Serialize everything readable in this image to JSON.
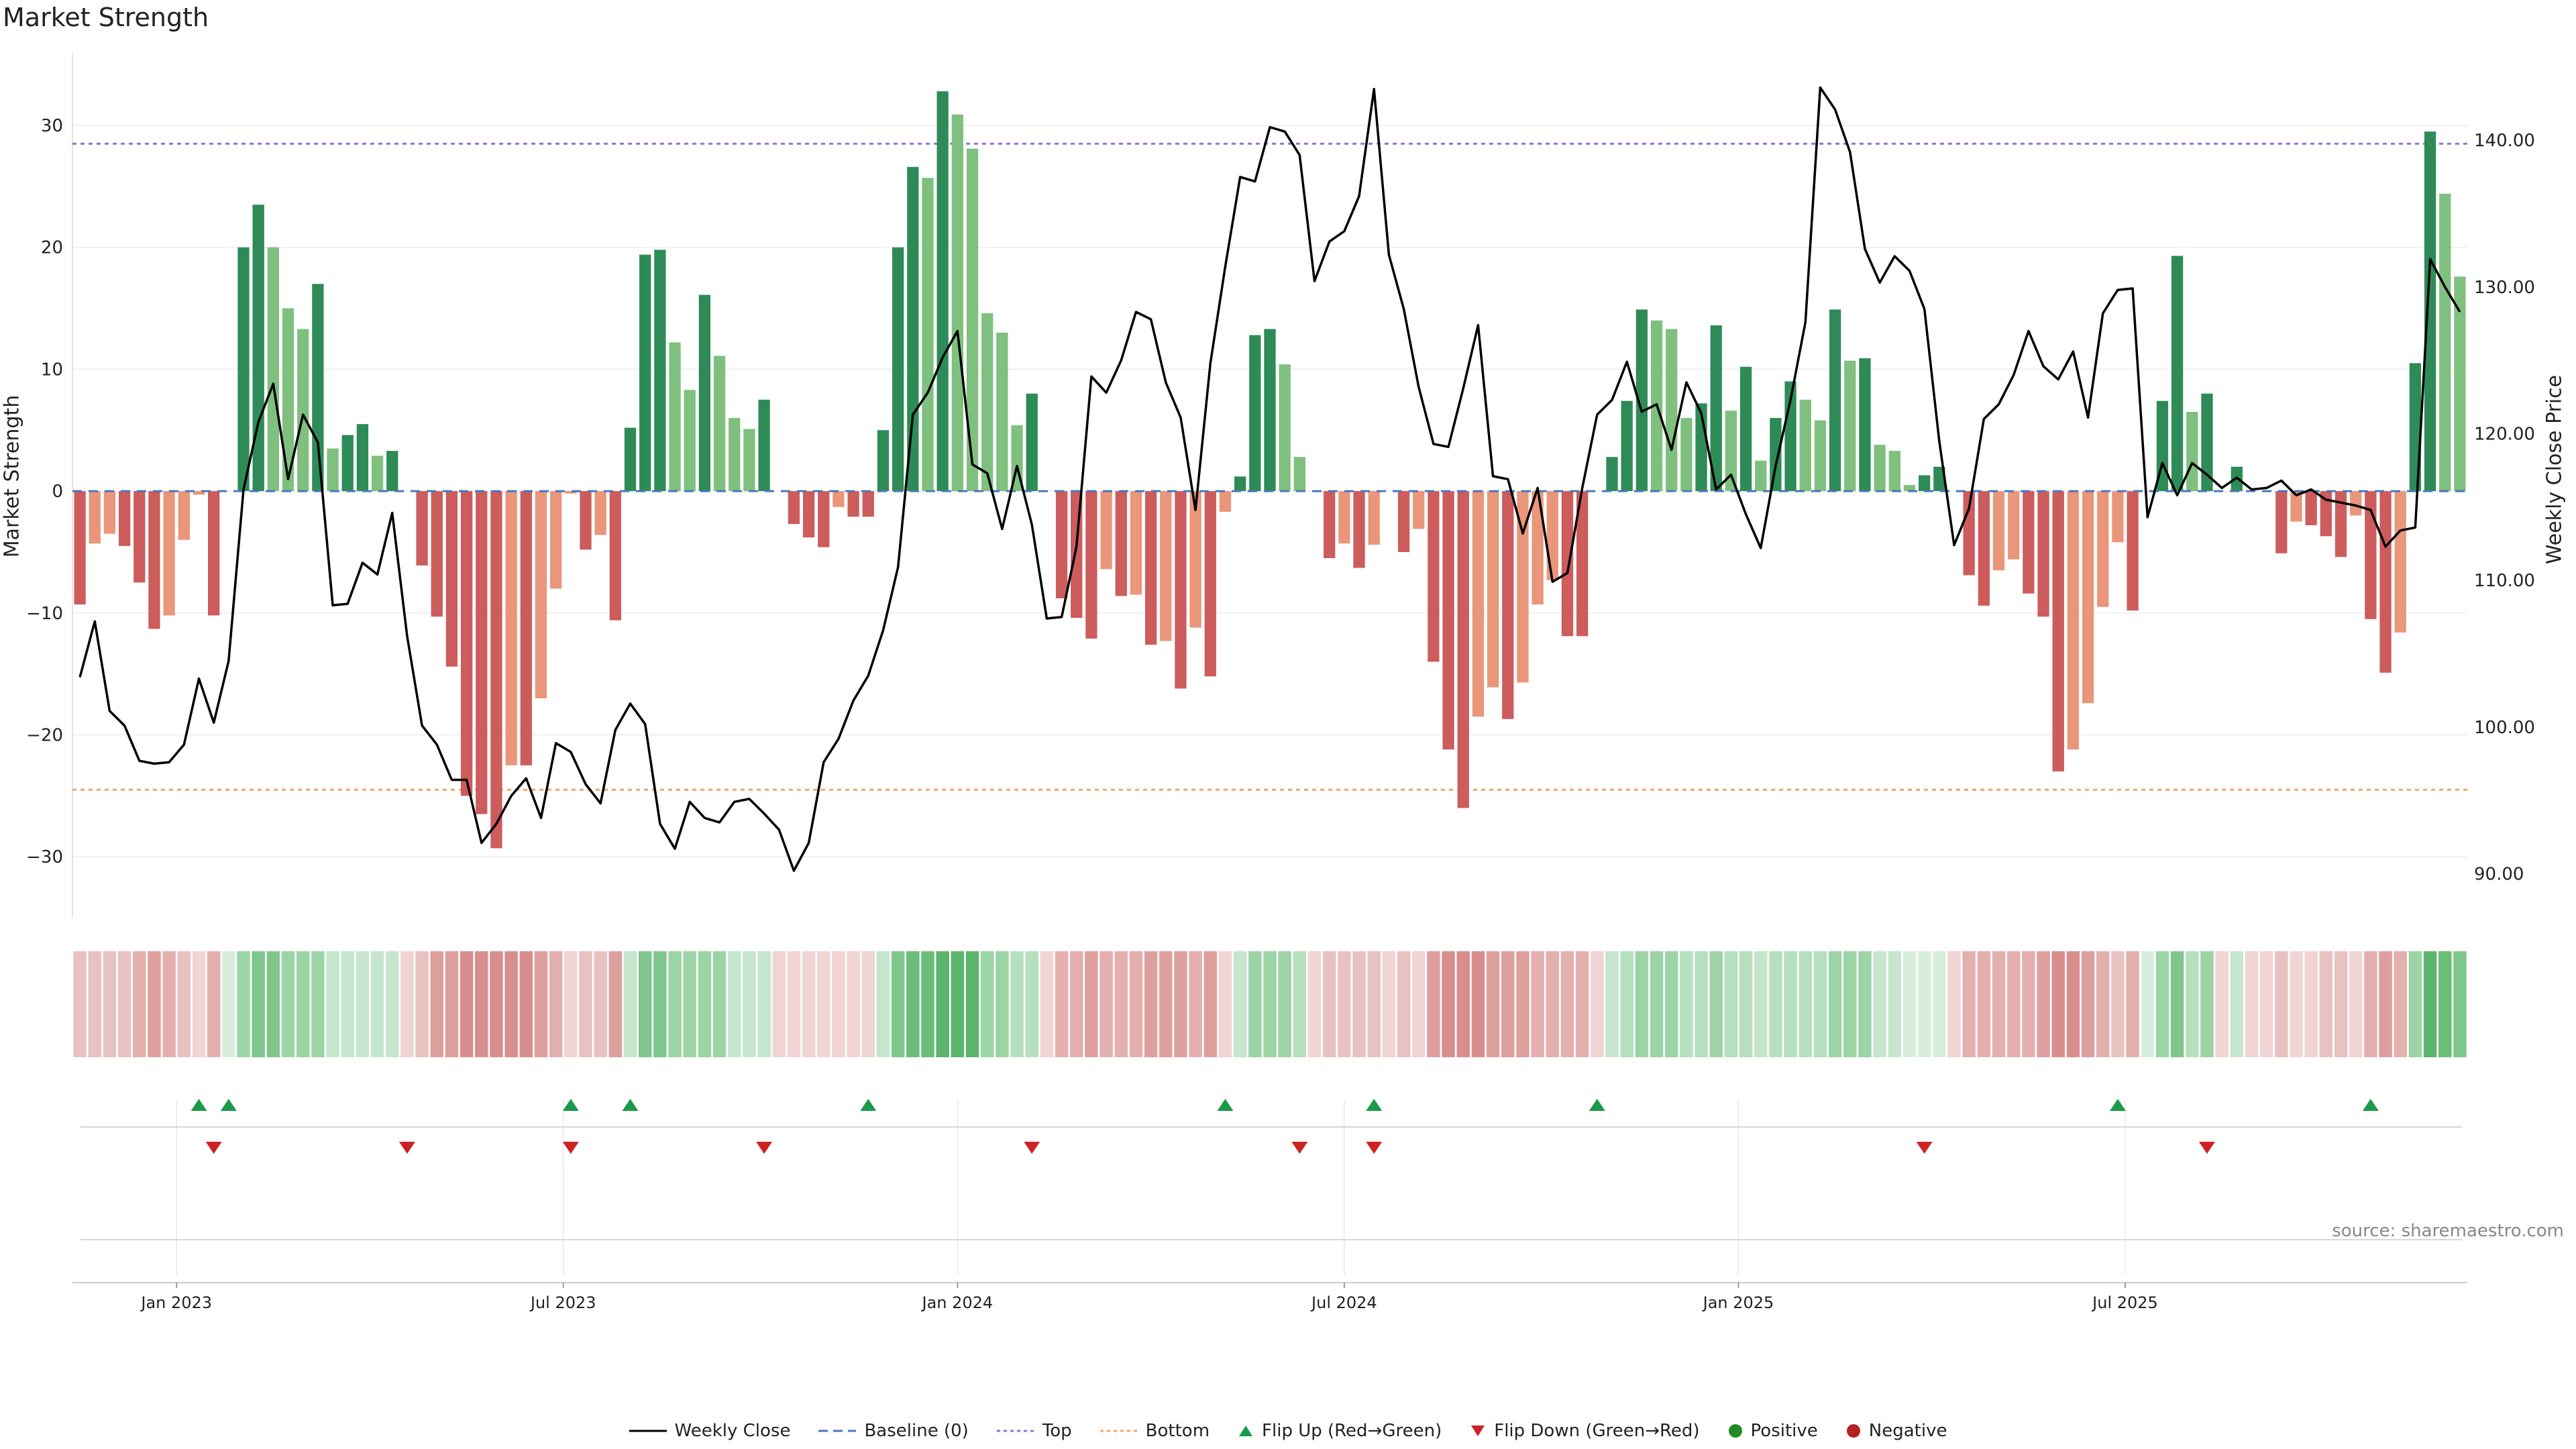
{
  "chart_data": {
    "type": "bar",
    "title": "Market Strength",
    "ylabel": "Market Strength",
    "y2label": "Weekly Close Price",
    "ylim": [
      -35,
      36
    ],
    "y2lim": [
      87,
      146
    ],
    "yticks": [
      30,
      20,
      10,
      0,
      -10,
      -20,
      -30
    ],
    "ytick_labels": [
      "30",
      "20",
      "10",
      "0",
      "−10",
      "−20",
      "−30"
    ],
    "y2ticks": [
      140,
      130,
      120,
      110,
      100,
      90
    ],
    "y2tick_labels": [
      "140.00",
      "130.00",
      "120.00",
      "110.00",
      "100.00",
      "90.00"
    ],
    "top_line": 28.5,
    "bottom_line": -24.5,
    "x_ticks": [
      {
        "week": 7,
        "label": "Jan 2023"
      },
      {
        "week": 33,
        "label": "Jul 2023"
      },
      {
        "week": 59.5,
        "label": "Jan 2024"
      },
      {
        "week": 85.5,
        "label": "Jul 2024"
      },
      {
        "week": 112,
        "label": "Jan 2025"
      },
      {
        "week": 138,
        "label": "Jul 2025"
      }
    ],
    "strength": [
      -9.3,
      -4.3,
      -3.5,
      -4.5,
      -7.5,
      -11.3,
      -10.2,
      -4,
      -0.3,
      -10.2,
      0,
      20,
      23.5,
      20,
      15,
      13.3,
      17,
      3.5,
      4.6,
      5.5,
      2.9,
      3.3,
      0,
      -6.1,
      -10.3,
      -14.4,
      -25,
      -26.5,
      -29.3,
      -22.5,
      -22.5,
      -17,
      -8,
      -0.2,
      -4.8,
      -3.6,
      -10.6,
      5.2,
      19.4,
      19.8,
      12.2,
      8.3,
      16.1,
      11.1,
      6,
      5.1,
      7.5,
      0,
      -2.7,
      -3.8,
      -4.6,
      -1.3,
      -2.1,
      -2.1,
      5,
      20,
      26.6,
      25.7,
      32.8,
      30.9,
      28.1,
      14.6,
      13,
      5.4,
      8,
      0,
      -8.8,
      -10.4,
      -12.1,
      -6.4,
      -8.6,
      -8.5,
      -12.6,
      -12.3,
      -16.2,
      -11.2,
      -15.2,
      -1.7,
      1.2,
      12.8,
      13.3,
      10.4,
      2.8,
      0,
      -5.5,
      -4.3,
      -6.3,
      -4.4,
      0,
      -5,
      -3.1,
      -14,
      -21.2,
      -26,
      -18.5,
      -16.1,
      -18.7,
      -15.7,
      -9.3,
      -7.3,
      -11.9,
      -11.9,
      0,
      2.8,
      7.4,
      14.9,
      14,
      13.3,
      6,
      7.2,
      13.6,
      6.6,
      10.2,
      2.5,
      6,
      9,
      7.5,
      5.8,
      14.9,
      10.7,
      10.9,
      3.8,
      3.3,
      0.5,
      1.3,
      2,
      0,
      -6.9,
      -9.4,
      -6.5,
      -5.6,
      -8.4,
      -10.3,
      -23,
      -21.2,
      -17.4,
      -9.5,
      -4.2,
      -9.8,
      0,
      7.4,
      19.3,
      6.5,
      8,
      0,
      2,
      0,
      0,
      -5.1,
      -2.5,
      -2.8,
      -3.7,
      -5.4,
      -2,
      -10.5,
      -14.9,
      -11.6,
      10.5,
      29.5,
      24.4,
      17.6
    ],
    "close": [
      103.4,
      107.2,
      101.1,
      100.1,
      97.7,
      97.5,
      97.6,
      98.8,
      103.3,
      100.3,
      104.5,
      116.2,
      120.8,
      123.4,
      116.9,
      121.3,
      119.4,
      108.3,
      108.4,
      111.2,
      110.4,
      114.6,
      106.2,
      100.1,
      98.8,
      96.4,
      96.4,
      92.1,
      93.4,
      95.3,
      96.5,
      93.8,
      98.9,
      98.3,
      96.1,
      94.8,
      99.8,
      101.6,
      100.2,
      93.4,
      91.7,
      94.9,
      93.8,
      93.5,
      94.9,
      95.1,
      94.1,
      93,
      90.2,
      92.1,
      97.6,
      99.2,
      101.8,
      103.5,
      106.6,
      110.9,
      121.3,
      122.8,
      125.2,
      127,
      117.9,
      117.3,
      113.5,
      117.8,
      113.8,
      107.4,
      107.5,
      112.3,
      123.9,
      122.8,
      125,
      128.3,
      127.8,
      123.5,
      121.1,
      114.8,
      124.8,
      131.4,
      137.5,
      137.2,
      140.9,
      140.6,
      139,
      130.4,
      133.1,
      133.8,
      136.2,
      143.5,
      132.2,
      128.5,
      123.2,
      119.3,
      119.1,
      123.1,
      127.4,
      117.1,
      116.9,
      113.2,
      116.3,
      109.9,
      110.5,
      116.3,
      121.3,
      122.3,
      124.9,
      121.5,
      122,
      118.9,
      123.5,
      121.4,
      116.2,
      117.2,
      114.5,
      112.2,
      117.8,
      122.3,
      127.6,
      143.6,
      142.1,
      139.2,
      132.6,
      130.3,
      132.1,
      131.1,
      128.5,
      119.5,
      112.4,
      114.9,
      121,
      122,
      124,
      127,
      124.6,
      123.7,
      125.6,
      121.1,
      128.2,
      129.8,
      129.9,
      114.3,
      118,
      115.8,
      118,
      117.2,
      116.3,
      117,
      116.2,
      116.3,
      116.8,
      115.8,
      116.2,
      115.5,
      115.3,
      115.1,
      114.8,
      112.3,
      113.4,
      113.6,
      131.9,
      130,
      128.3
    ],
    "bg_colors": [
      "#e8c2c0",
      "#e8c2c0",
      "#e8c2c0",
      "#e8c2c0",
      "#e3b0ae",
      "#dea09e",
      "#e3b0ae",
      "#e8c2c0",
      "#f0d5d4",
      "#e3b0ae",
      "#d8eedc",
      "#9cd4a6",
      "#7fc68d",
      "#7fc68d",
      "#9cd4a6",
      "#9cd4a6",
      "#9cd4a6",
      "#c5e6cc",
      "#c5e6cc",
      "#c5e6cc",
      "#c5e6cc",
      "#c5e6cc",
      "#f0d5d4",
      "#e8c2c0",
      "#dea09e",
      "#dea09e",
      "#d88e8c",
      "#d88e8c",
      "#d88e8c",
      "#d88e8c",
      "#d88e8c",
      "#dea09e",
      "#e3b0ae",
      "#f0d5d4",
      "#e8c2c0",
      "#e8c2c0",
      "#dea09e",
      "#c5e6cc",
      "#7fc68d",
      "#7fc68d",
      "#9cd4a6",
      "#9cd4a6",
      "#9cd4a6",
      "#9cd4a6",
      "#c5e6cc",
      "#c5e6cc",
      "#c5e6cc",
      "#f0d5d4",
      "#f0d5d4",
      "#f0d5d4",
      "#f0d5d4",
      "#f0d5d4",
      "#f0d5d4",
      "#f0d5d4",
      "#c5e6cc",
      "#7fc68d",
      "#6bbd7a",
      "#6bbd7a",
      "#5db46c",
      "#5db46c",
      "#5db46c",
      "#9cd4a6",
      "#9cd4a6",
      "#b5dfbd",
      "#b5dfbd",
      "#f0d5d4",
      "#e3b0ae",
      "#e3b0ae",
      "#dea09e",
      "#e3b0ae",
      "#e3b0ae",
      "#e3b0ae",
      "#dea09e",
      "#dea09e",
      "#dea09e",
      "#e3b0ae",
      "#dea09e",
      "#f0d5d4",
      "#c5e6cc",
      "#9cd4a6",
      "#9cd4a6",
      "#9cd4a6",
      "#b5dfbd",
      "#f0d5d4",
      "#e8c2c0",
      "#e8c2c0",
      "#e8c2c0",
      "#e8c2c0",
      "#f0d5d4",
      "#e8c2c0",
      "#f0d5d4",
      "#dea09e",
      "#d88e8c",
      "#d88e8c",
      "#d88e8c",
      "#dea09e",
      "#dea09e",
      "#dea09e",
      "#e3b0ae",
      "#e3b0ae",
      "#e3b0ae",
      "#e3b0ae",
      "#f0d5d4",
      "#c5e6cc",
      "#b5dfbd",
      "#9cd4a6",
      "#9cd4a6",
      "#9cd4a6",
      "#b5dfbd",
      "#b5dfbd",
      "#9cd4a6",
      "#b5dfbd",
      "#b5dfbd",
      "#c5e6cc",
      "#b5dfbd",
      "#b5dfbd",
      "#b5dfbd",
      "#b5dfbd",
      "#9cd4a6",
      "#9cd4a6",
      "#9cd4a6",
      "#c5e6cc",
      "#c5e6cc",
      "#d8eedc",
      "#d8eedc",
      "#d8eedc",
      "#f0d5d4",
      "#e3b0ae",
      "#e3b0ae",
      "#e3b0ae",
      "#e3b0ae",
      "#e3b0ae",
      "#dea09e",
      "#d88e8c",
      "#d88e8c",
      "#dea09e",
      "#e3b0ae",
      "#e8c2c0",
      "#e3b0ae",
      "#d8eedc",
      "#9cd4a6",
      "#7fc68d",
      "#b5dfbd",
      "#9cd4a6",
      "#f0d5d4",
      "#c5e6cc",
      "#f0d5d4",
      "#f0d5d4",
      "#e8c2c0",
      "#f0d5d4",
      "#f0d5d4",
      "#e8c2c0",
      "#e8c2c0",
      "#f0d5d4",
      "#e3b0ae",
      "#dea09e",
      "#e3b0ae",
      "#9cd4a6",
      "#5db46c",
      "#6bbd7a",
      "#7fc68d"
    ],
    "flip_up_weeks": [
      8,
      10,
      33,
      37,
      53,
      77,
      87,
      102,
      137,
      154
    ],
    "flip_down_weeks": [
      9,
      22,
      33,
      46,
      64,
      82,
      87,
      124,
      143
    ],
    "colors": {
      "positive_strong": "#2e8b57",
      "positive_light": "#7fc07f",
      "negative_strong": "#cd5c5c",
      "negative_light": "#e9967a",
      "price_line": "#000000",
      "baseline": "#4a7ab5",
      "top": "#9370db",
      "bottom": "#f4a460",
      "flip_up": "#1a9a4a",
      "flip_down": "#cc2222",
      "positive_marker": "#228b22",
      "negative_marker": "#b22222"
    }
  },
  "legend": {
    "weekly_close": "Weekly Close",
    "baseline": "Baseline (0)",
    "top": "Top",
    "bottom": "Bottom",
    "flip_up": "Flip Up (Red→Green)",
    "flip_down": "Flip Down (Green→Red)",
    "positive": "Positive",
    "negative": "Negative"
  },
  "source": "source: sharemaestro.com"
}
